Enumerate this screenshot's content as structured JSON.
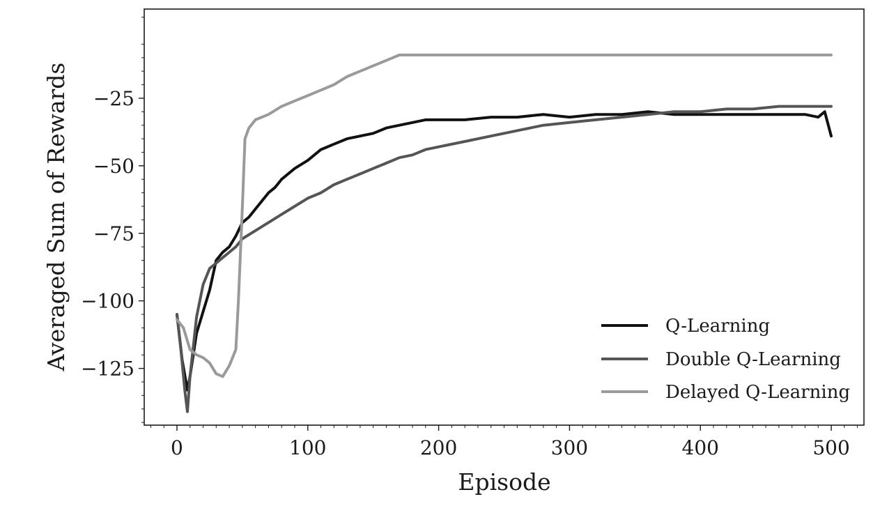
{
  "chart_data": {
    "type": "line",
    "title": "",
    "xlabel": "Episode",
    "ylabel": "Averaged Sum of Rewards",
    "xlim": [
      -25,
      525
    ],
    "ylim": [
      -146,
      8
    ],
    "xticks": [
      0,
      100,
      200,
      300,
      400,
      500
    ],
    "xtick_labels": [
      "0",
      "100",
      "200",
      "300",
      "400",
      "500"
    ],
    "yticks": [
      -125,
      -100,
      -75,
      -50,
      -25
    ],
    "ytick_labels": [
      "−125",
      "−100",
      "−75",
      "−50",
      "−25"
    ],
    "grid": false,
    "legend_position": "bottom-right",
    "series": [
      {
        "name": "Q-Learning",
        "color": "#111111",
        "x": [
          0,
          4,
          8,
          10,
          15,
          20,
          25,
          30,
          35,
          40,
          45,
          50,
          55,
          60,
          65,
          70,
          75,
          80,
          90,
          100,
          110,
          120,
          130,
          140,
          150,
          160,
          170,
          180,
          190,
          200,
          220,
          240,
          260,
          280,
          300,
          320,
          340,
          360,
          380,
          400,
          420,
          440,
          460,
          480,
          490,
          495,
          500
        ],
        "y": [
          -105,
          -122,
          -133,
          -128,
          -112,
          -104,
          -96,
          -85,
          -82,
          -80,
          -76,
          -71,
          -69,
          -66,
          -63,
          -60,
          -58,
          -55,
          -51,
          -48,
          -44,
          -42,
          -40,
          -39,
          -38,
          -36,
          -35,
          -34,
          -33,
          -33,
          -33,
          -32,
          -32,
          -31,
          -32,
          -31,
          -31,
          -30,
          -31,
          -31,
          -31,
          -31,
          -31,
          -31,
          -32,
          -30,
          -39
        ]
      },
      {
        "name": "Double Q-Learning",
        "color": "#555555",
        "x": [
          0,
          3,
          6,
          8,
          10,
          15,
          20,
          25,
          30,
          35,
          40,
          45,
          50,
          60,
          70,
          80,
          90,
          100,
          110,
          120,
          130,
          140,
          150,
          160,
          170,
          180,
          190,
          200,
          220,
          240,
          260,
          280,
          300,
          320,
          340,
          360,
          380,
          400,
          420,
          440,
          460,
          480,
          500
        ],
        "y": [
          -105,
          -118,
          -133,
          -141,
          -128,
          -106,
          -94,
          -88,
          -86,
          -84,
          -82,
          -80,
          -77,
          -74,
          -71,
          -68,
          -65,
          -62,
          -60,
          -57,
          -55,
          -53,
          -51,
          -49,
          -47,
          -46,
          -44,
          -43,
          -41,
          -39,
          -37,
          -35,
          -34,
          -33,
          -32,
          -31,
          -30,
          -30,
          -29,
          -29,
          -28,
          -28,
          -28
        ]
      },
      {
        "name": "Delayed Q-Learning",
        "color": "#9a9a9a",
        "x": [
          0,
          5,
          10,
          15,
          20,
          25,
          30,
          35,
          40,
          45,
          47,
          50,
          52,
          55,
          60,
          70,
          80,
          90,
          100,
          110,
          120,
          130,
          140,
          150,
          160,
          170,
          180,
          200,
          250,
          300,
          350,
          400,
          450,
          500
        ],
        "y": [
          -107,
          -110,
          -118,
          -120,
          -121,
          -123,
          -127,
          -128,
          -124,
          -118,
          -100,
          -65,
          -40,
          -36,
          -33,
          -31,
          -28,
          -26,
          -24,
          -22,
          -20,
          -17,
          -15,
          -13,
          -11,
          -9,
          -9,
          -9,
          -9,
          -9,
          -9,
          -9,
          -9,
          -9
        ]
      }
    ]
  }
}
